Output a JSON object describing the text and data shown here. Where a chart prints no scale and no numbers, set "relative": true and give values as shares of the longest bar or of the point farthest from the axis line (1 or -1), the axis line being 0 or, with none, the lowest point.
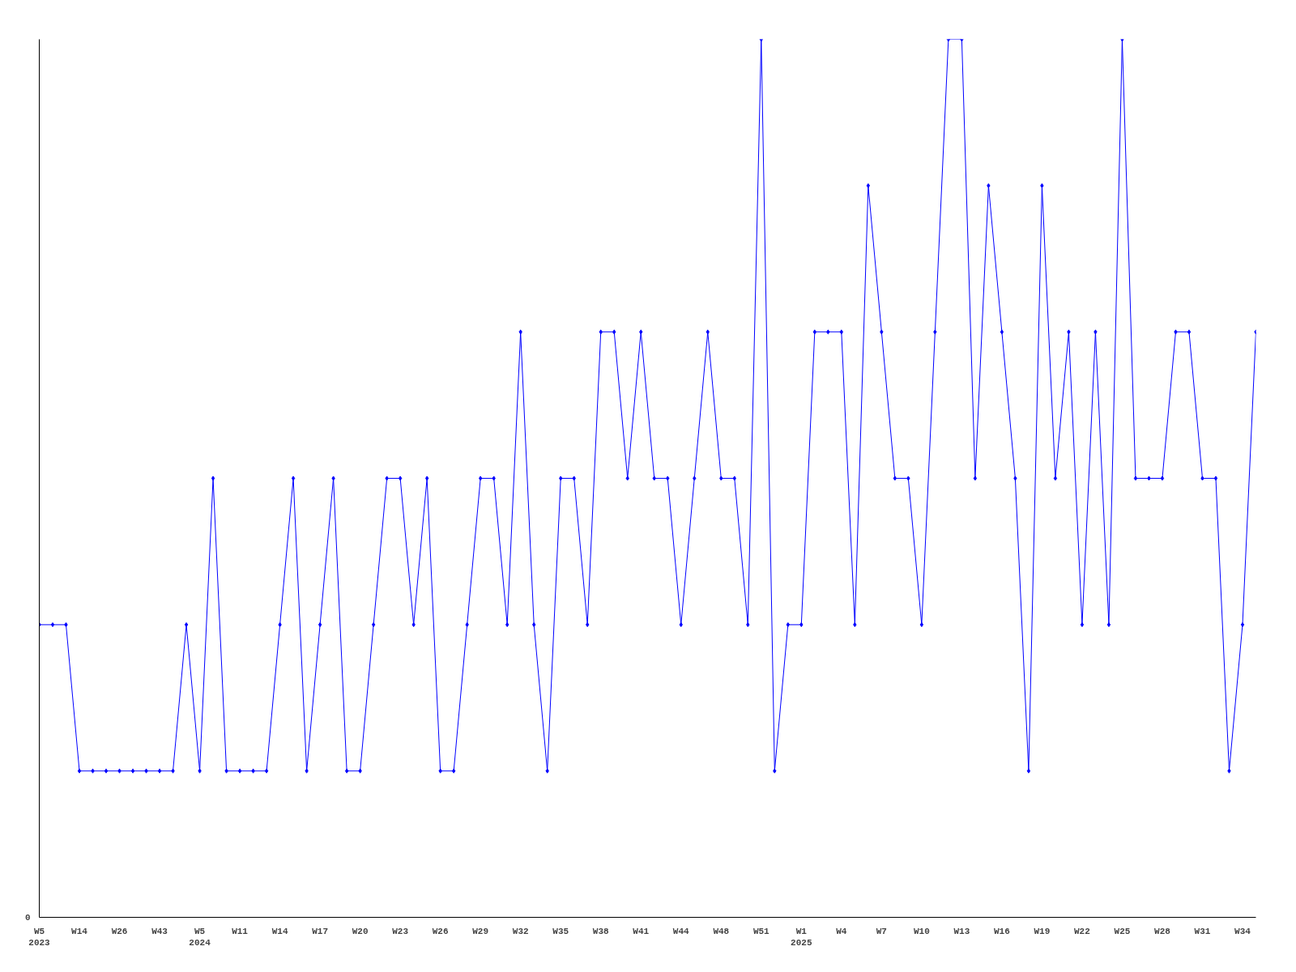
{
  "chart_data": {
    "type": "line",
    "relative": true,
    "annotations": [
      "0"
    ],
    "marker": "diamond",
    "line_style": "solid",
    "grid": false,
    "categories": [
      "W5\n2023",
      null,
      null,
      "W14",
      null,
      null,
      "W26",
      null,
      null,
      "W43",
      null,
      null,
      "W5\n2024",
      null,
      null,
      "W11",
      null,
      null,
      "W14",
      null,
      null,
      "W17",
      null,
      null,
      "W20",
      null,
      null,
      "W23",
      null,
      null,
      "W26",
      null,
      null,
      "W29",
      null,
      null,
      "W32",
      null,
      null,
      "W35",
      null,
      null,
      "W38",
      null,
      null,
      "W41",
      null,
      null,
      "W44",
      null,
      null,
      "W48",
      null,
      null,
      "W51",
      null,
      null,
      "W1\n2025",
      null,
      null,
      "W4",
      null,
      null,
      "W7",
      null,
      null,
      "W10",
      null,
      null,
      "W13",
      null,
      null,
      "W16",
      null,
      null,
      "W19",
      null,
      null,
      "W22",
      null,
      null,
      "W25",
      null,
      null,
      "W28",
      null,
      null,
      "W31",
      null,
      null,
      "W34",
      null
    ],
    "series": [
      {
        "color": "#0000ff",
        "values": [
          0.3333,
          0.3333,
          0.3333,
          0.1667,
          0.1667,
          0.1667,
          0.1667,
          0.1667,
          0.1667,
          0.1667,
          0.1667,
          0.3333,
          0.1667,
          0.5,
          0.1667,
          0.1667,
          0.1667,
          0.1667,
          0.3333,
          0.5,
          0.1667,
          0.3333,
          0.5,
          0.1667,
          0.1667,
          0.3333,
          0.5,
          0.5,
          0.3333,
          0.5,
          0.1667,
          0.1667,
          0.3333,
          0.5,
          0.5,
          0.3333,
          0.6667,
          0.3333,
          0.1667,
          0.5,
          0.5,
          0.3333,
          0.6667,
          0.6667,
          0.5,
          0.6667,
          0.5,
          0.5,
          0.3333,
          0.5,
          0.6667,
          0.5,
          0.5,
          0.3333,
          1,
          0.1667,
          0.3333,
          0.3333,
          0.6667,
          0.6667,
          0.6667,
          0.3333,
          0.8333,
          0.6667,
          0.5,
          0.5,
          0.3333,
          0.6667,
          1,
          1,
          0.5,
          0.8333,
          0.6667,
          0.5,
          0.1667,
          0.8333,
          0.5,
          0.6667,
          0.3333,
          0.6667,
          0.3333,
          1,
          0.5,
          0.5,
          0.5,
          0.6667,
          0.6667,
          0.5,
          0.5,
          0.1667,
          0.3333,
          0.6667
        ]
      }
    ]
  }
}
